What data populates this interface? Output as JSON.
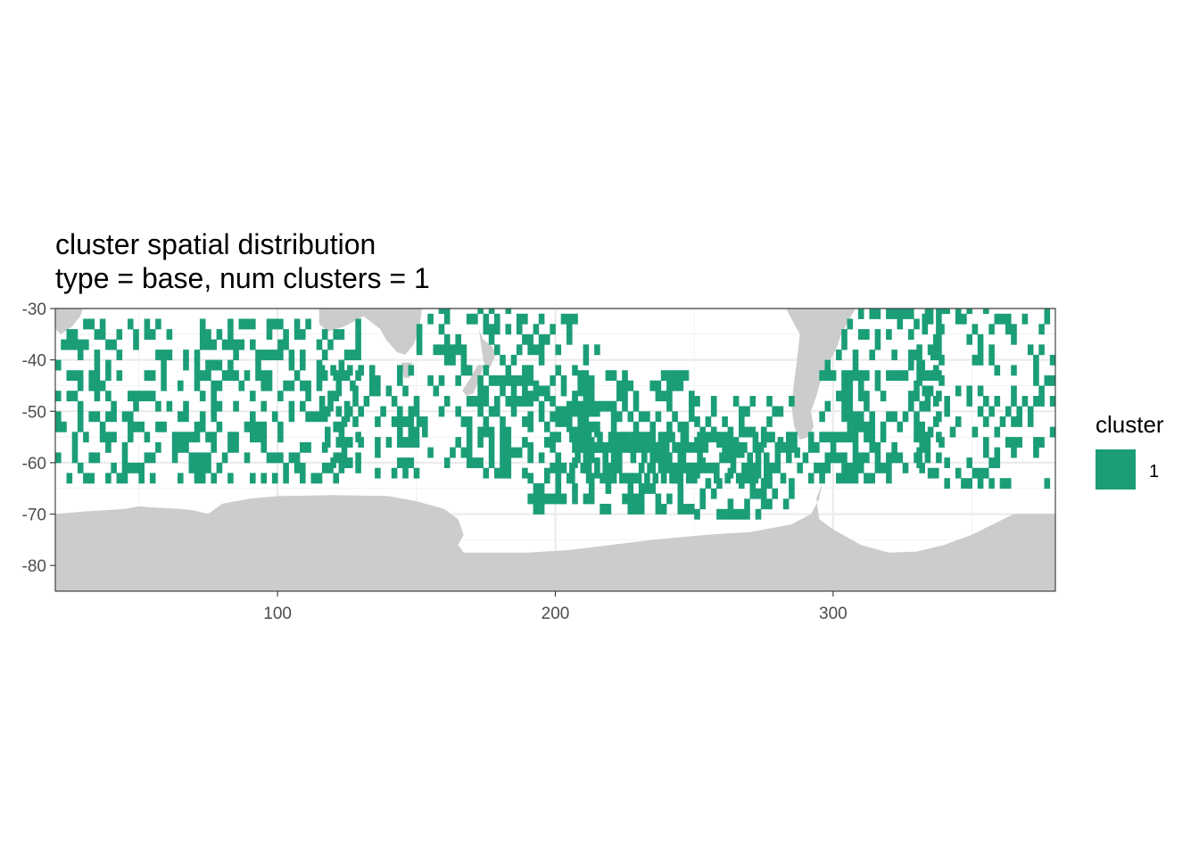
{
  "chart_data": {
    "type": "heatmap",
    "title": "cluster spatial distribution",
    "subtitle": "type = base, num clusters = 1",
    "xlabel": "",
    "ylabel": "",
    "xlim": [
      20,
      380
    ],
    "ylim": [
      -85,
      -30
    ],
    "x_ticks": [
      100,
      200,
      300
    ],
    "x_tick_labels": [
      "100",
      "200",
      "300"
    ],
    "y_ticks": [
      -30,
      -40,
      -50,
      -60,
      -70,
      -80
    ],
    "y_tick_labels": [
      "-30",
      "-40",
      "-50",
      "-60",
      "-70",
      "-80"
    ],
    "grid": true,
    "theme": "bw",
    "legend": {
      "title": "cluster",
      "position": "right",
      "entries": [
        {
          "label": "1",
          "color": "#1b9e77"
        }
      ]
    },
    "colors": {
      "cluster_1": "#1b9e77",
      "land": "#cccccc",
      "ocean": "#ffffff",
      "grid": "#ebebeb",
      "panel_border": "#333333"
    },
    "cell_size_deg": 2,
    "land_masks": [
      {
        "name": "antarctica",
        "points": [
          [
            20,
            -70
          ],
          [
            30,
            -69.5
          ],
          [
            45,
            -69
          ],
          [
            50,
            -68.5
          ],
          [
            55,
            -68.7
          ],
          [
            65,
            -69
          ],
          [
            70,
            -69.3
          ],
          [
            75,
            -70
          ],
          [
            80,
            -68
          ],
          [
            90,
            -67
          ],
          [
            100,
            -66.5
          ],
          [
            120,
            -66.3
          ],
          [
            140,
            -66.5
          ],
          [
            150,
            -67.5
          ],
          [
            160,
            -69
          ],
          [
            165,
            -71
          ],
          [
            167,
            -74
          ],
          [
            165,
            -76
          ],
          [
            167,
            -77.5
          ],
          [
            190,
            -77.5
          ],
          [
            205,
            -77
          ],
          [
            220,
            -76
          ],
          [
            235,
            -75
          ],
          [
            255,
            -74
          ],
          [
            270,
            -73.5
          ],
          [
            285,
            -72
          ],
          [
            292,
            -70
          ],
          [
            295,
            -67
          ],
          [
            296,
            -64
          ],
          [
            294,
            -67
          ],
          [
            295,
            -71
          ],
          [
            300,
            -73
          ],
          [
            310,
            -76
          ],
          [
            320,
            -77.5
          ],
          [
            330,
            -77.3
          ],
          [
            340,
            -76
          ],
          [
            350,
            -74
          ],
          [
            365,
            -70
          ],
          [
            380,
            -70
          ],
          [
            380,
            -85
          ],
          [
            20,
            -85
          ]
        ]
      },
      {
        "name": "africa",
        "points": [
          [
            20,
            -30
          ],
          [
            30,
            -30
          ],
          [
            29,
            -31.5
          ],
          [
            26,
            -33.5
          ],
          [
            22,
            -35
          ],
          [
            20,
            -34
          ]
        ]
      },
      {
        "name": "australia",
        "points": [
          [
            115,
            -30
          ],
          [
            152,
            -30
          ],
          [
            151,
            -34
          ],
          [
            149,
            -37
          ],
          [
            146,
            -39
          ],
          [
            143,
            -38.5
          ],
          [
            139,
            -36
          ],
          [
            137,
            -34
          ],
          [
            131,
            -31.5
          ],
          [
            124,
            -33.5
          ],
          [
            118,
            -34.5
          ],
          [
            115,
            -33
          ]
        ]
      },
      {
        "name": "tasmania",
        "points": [
          [
            144.5,
            -40.5
          ],
          [
            148.5,
            -40.5
          ],
          [
            147.5,
            -43.5
          ],
          [
            145.5,
            -43.5
          ]
        ]
      },
      {
        "name": "new-zealand-north",
        "points": [
          [
            172.5,
            -34
          ],
          [
            174,
            -36
          ],
          [
            177.5,
            -37.5
          ],
          [
            178.5,
            -39
          ],
          [
            176.5,
            -41.5
          ],
          [
            175,
            -41.5
          ],
          [
            174,
            -40
          ],
          [
            173,
            -36
          ]
        ]
      },
      {
        "name": "new-zealand-south",
        "points": [
          [
            174,
            -41
          ],
          [
            172,
            -41
          ],
          [
            169.5,
            -43.5
          ],
          [
            166.5,
            -46
          ],
          [
            168,
            -47
          ],
          [
            170.5,
            -46.5
          ],
          [
            173,
            -43.5
          ]
        ]
      },
      {
        "name": "south-america",
        "points": [
          [
            283,
            -30
          ],
          [
            308,
            -30
          ],
          [
            305,
            -33
          ],
          [
            303,
            -35
          ],
          [
            301,
            -38
          ],
          [
            298,
            -41
          ],
          [
            296,
            -43
          ],
          [
            294,
            -47
          ],
          [
            292,
            -50
          ],
          [
            293,
            -53
          ],
          [
            291,
            -55
          ],
          [
            288,
            -55.5
          ],
          [
            286,
            -53
          ],
          [
            285,
            -49
          ],
          [
            286,
            -44
          ],
          [
            287,
            -40
          ],
          [
            288,
            -35
          ]
        ]
      }
    ],
    "cluster_regions": [
      {
        "x": [
          20,
          130
        ],
        "y": [
          -64,
          -33
        ],
        "density": 0.33
      },
      {
        "x": [
          115,
          150
        ],
        "y": [
          -63,
          -41
        ],
        "density": 0.4
      },
      {
        "x": [
          150,
          185
        ],
        "y": [
          -63,
          -30
        ],
        "density": 0.24
      },
      {
        "x": [
          170,
          215
        ],
        "y": [
          -63,
          -32
        ],
        "density": 0.34
      },
      {
        "x": [
          190,
          250
        ],
        "y": [
          -70,
          -42
        ],
        "density": 0.36
      },
      {
        "x": [
          250,
          290
        ],
        "y": [
          -71,
          -48
        ],
        "density": 0.28
      },
      {
        "x": [
          295,
          338
        ],
        "y": [
          -62,
          -31
        ],
        "density": 0.38
      },
      {
        "x": [
          330,
          380
        ],
        "y": [
          -65,
          -30
        ],
        "density": 0.26
      },
      {
        "x": [
          205,
          320
        ],
        "y": [
          -64,
          -54
        ],
        "density": 0.52
      }
    ]
  }
}
